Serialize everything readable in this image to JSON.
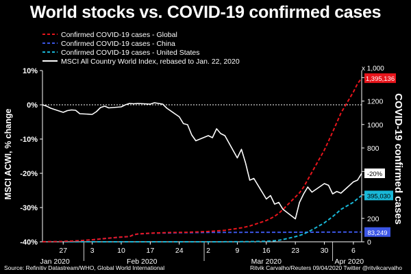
{
  "chart_data": {
    "type": "line",
    "title": "World stocks vs. COVID-19 confirmed cases",
    "ylabel_left": "MSCI ACWI, % change",
    "ylabel_right": "COVID-19 confirmed cases",
    "right_unit": "x 1,000",
    "y_left_range": [
      -40,
      10
    ],
    "y_left_ticks": [
      "10%",
      "0%",
      "-10%",
      "-20%",
      "-30%",
      "-40%"
    ],
    "y_right_range": [
      0,
      1460
    ],
    "y_right_ticks": [
      "0",
      "200",
      "400",
      "600",
      "800",
      "1000",
      "1200",
      "1400"
    ],
    "x_day_labels": [
      "27",
      "3",
      "10",
      "17",
      "24",
      "2",
      "9",
      "16",
      "23",
      "30",
      "6"
    ],
    "x_month_labels": [
      "Jan 2020",
      "Feb 2020",
      "Mar 2020",
      "Apr 2020"
    ],
    "x_dates": [
      "2020-01-22",
      "2020-01-23",
      "2020-01-24",
      "2020-01-27",
      "2020-01-28",
      "2020-01-29",
      "2020-01-30",
      "2020-01-31",
      "2020-02-03",
      "2020-02-04",
      "2020-02-05",
      "2020-02-06",
      "2020-02-07",
      "2020-02-10",
      "2020-02-11",
      "2020-02-12",
      "2020-02-13",
      "2020-02-14",
      "2020-02-17",
      "2020-02-18",
      "2020-02-19",
      "2020-02-20",
      "2020-02-21",
      "2020-02-24",
      "2020-02-25",
      "2020-02-26",
      "2020-02-27",
      "2020-02-28",
      "2020-03-02",
      "2020-03-03",
      "2020-03-04",
      "2020-03-05",
      "2020-03-06",
      "2020-03-09",
      "2020-03-10",
      "2020-03-11",
      "2020-03-12",
      "2020-03-13",
      "2020-03-16",
      "2020-03-17",
      "2020-03-18",
      "2020-03-19",
      "2020-03-20",
      "2020-03-23",
      "2020-03-24",
      "2020-03-25",
      "2020-03-26",
      "2020-03-27",
      "2020-03-30",
      "2020-03-31",
      "2020-04-01",
      "2020-04-02",
      "2020-04-03",
      "2020-04-06",
      "2020-04-07",
      "2020-04-08"
    ],
    "series": [
      {
        "name": "Confirmed COVID-19 cases - Global",
        "axis": "right",
        "color": "#e8151c",
        "dash": true,
        "values": [
          0.6,
          0.9,
          1.3,
          2.9,
          5.6,
          6.1,
          8.2,
          9.8,
          17.4,
          20.6,
          24.6,
          28.3,
          31.5,
          40.6,
          43.1,
          45.2,
          60.4,
          67.1,
          73.3,
          75.2,
          75.7,
          76.8,
          78.6,
          79.9,
          80.5,
          81.4,
          82.8,
          84.1,
          88.4,
          90.3,
          93.1,
          95.3,
          98.2,
          113.6,
          119.4,
          126.5,
          134.9,
          145.8,
          181.6,
          198.6,
          217.7,
          243.0,
          275.4,
          381.8,
          416.9,
          467.4,
          529.5,
          593.4,
          782.4,
          858.3,
          935.9,
          1016.6,
          1097.6,
          1278.0,
          1347.0,
          1395.1
        ]
      },
      {
        "name": "Confirmed COVID-19 cases - China",
        "axis": "right",
        "color": "#3c56e6",
        "dash": true,
        "values": [
          0.5,
          0.7,
          1.0,
          2.8,
          5.5,
          6.0,
          8.0,
          9.7,
          17.2,
          20.4,
          24.4,
          28.0,
          31.2,
          40.2,
          42.6,
          44.7,
          59.9,
          66.6,
          72.4,
          74.2,
          74.6,
          75.1,
          75.6,
          77.2,
          77.7,
          78.1,
          78.5,
          78.8,
          80.0,
          80.2,
          80.3,
          80.5,
          80.7,
          80.8,
          80.8,
          80.9,
          80.9,
          80.9,
          81.0,
          81.1,
          81.1,
          81.2,
          81.3,
          81.5,
          81.6,
          81.7,
          81.8,
          81.9,
          82.1,
          82.3,
          82.4,
          82.6,
          82.8,
          83.0,
          83.1,
          83.2
        ]
      },
      {
        "name": "Confirmed COVID-19 cases - United States",
        "axis": "right",
        "color": "#19b8d8",
        "dash": true,
        "values": [
          0,
          0,
          0,
          0,
          0,
          0,
          0,
          0,
          0,
          0,
          0,
          0,
          0,
          0,
          0,
          0,
          0,
          0,
          0,
          0,
          0,
          0,
          0,
          0,
          0,
          0,
          0,
          0,
          0.1,
          0.1,
          0.2,
          0.2,
          0.3,
          0.6,
          0.9,
          1.3,
          1.7,
          2.2,
          4.6,
          6.4,
          9.4,
          13.7,
          19.1,
          43.7,
          53.7,
          65.8,
          83.8,
          101.6,
          161.8,
          188.2,
          215.0,
          244.9,
          276.1,
          337.6,
          366.6,
          395.0
        ]
      },
      {
        "name": "MSCI All Country World Index, rebased to Jan. 22, 2020",
        "axis": "left",
        "color": "#ffffff",
        "dash": false,
        "values": [
          0,
          -0.4,
          -1.0,
          -2.2,
          -1.7,
          -1.5,
          -1.6,
          -2.6,
          -2.8,
          -2.0,
          -0.8,
          -0.4,
          -0.9,
          -0.6,
          0.0,
          0.4,
          0.3,
          0.4,
          0.2,
          0.6,
          0.4,
          0.2,
          -1.0,
          -3.5,
          -5.5,
          -5.8,
          -8.8,
          -10.5,
          -9.0,
          -9.6,
          -7.0,
          -8.4,
          -9.0,
          -15.5,
          -13.0,
          -17.0,
          -22.0,
          -21.5,
          -27.5,
          -26.5,
          -29.0,
          -28.5,
          -30.5,
          -33.3,
          -28.5,
          -26.0,
          -24.0,
          -25.5,
          -23.0,
          -23.5,
          -26.0,
          -25.3,
          -25.8,
          -22.5,
          -22.0,
          -20.0
        ]
      }
    ],
    "value_labels": [
      "1,395,136",
      "-20%",
      "395,030",
      "83,249"
    ],
    "source_left": "Source: Refinitiv Datastream/WHO, Global World International",
    "source_right": "Ritvik Carvalho/Reuters 09/04/2020 Twitter @ritvikcarvalho"
  }
}
